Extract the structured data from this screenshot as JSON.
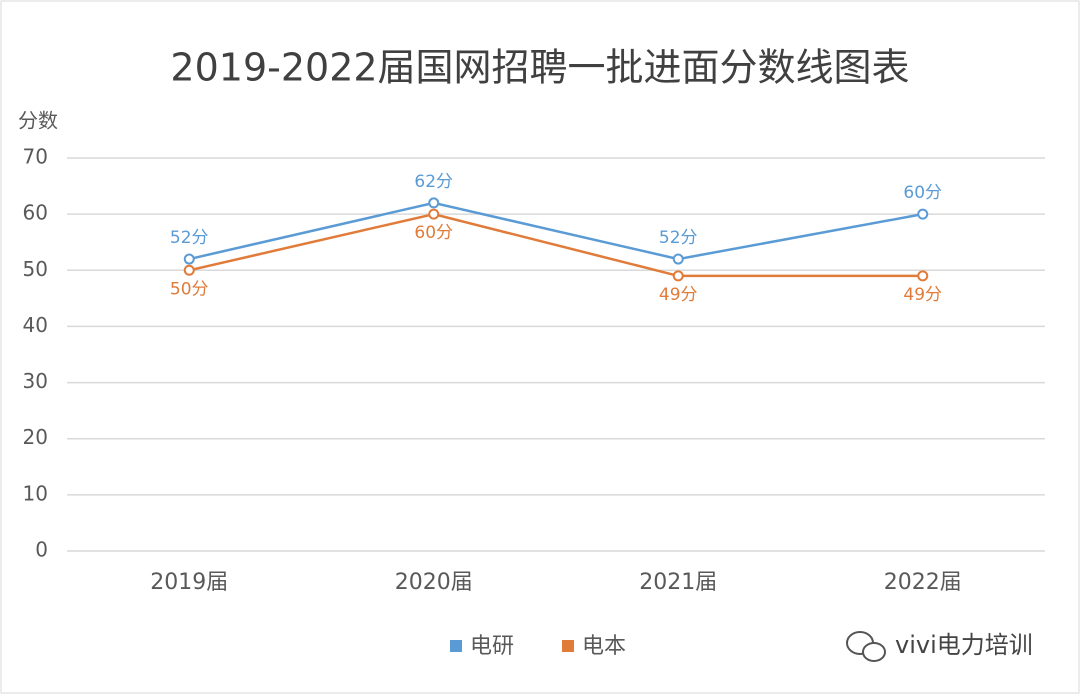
{
  "chart_data": {
    "type": "line",
    "title": "2019-2022届国网招聘一批进面分数线图表",
    "y_label": "分数",
    "categories": [
      "2019届",
      "2020届",
      "2021届",
      "2022届"
    ],
    "series": [
      {
        "name": "电研",
        "color": "#5b9bd5",
        "values": [
          52,
          62,
          52,
          60
        ],
        "value_labels": [
          "52分",
          "62分",
          "52分",
          "60分"
        ]
      },
      {
        "name": "电本",
        "color": "#e07b39",
        "values": [
          50,
          60,
          49,
          49
        ],
        "value_labels": [
          "50分",
          "60分",
          "49分",
          "49分"
        ]
      }
    ],
    "ylim": [
      0,
      70
    ],
    "yticks": [
      0,
      10,
      20,
      30,
      40,
      50,
      60,
      70
    ],
    "grid": true,
    "legend": "bottom"
  },
  "watermark": "vivi电力培训"
}
